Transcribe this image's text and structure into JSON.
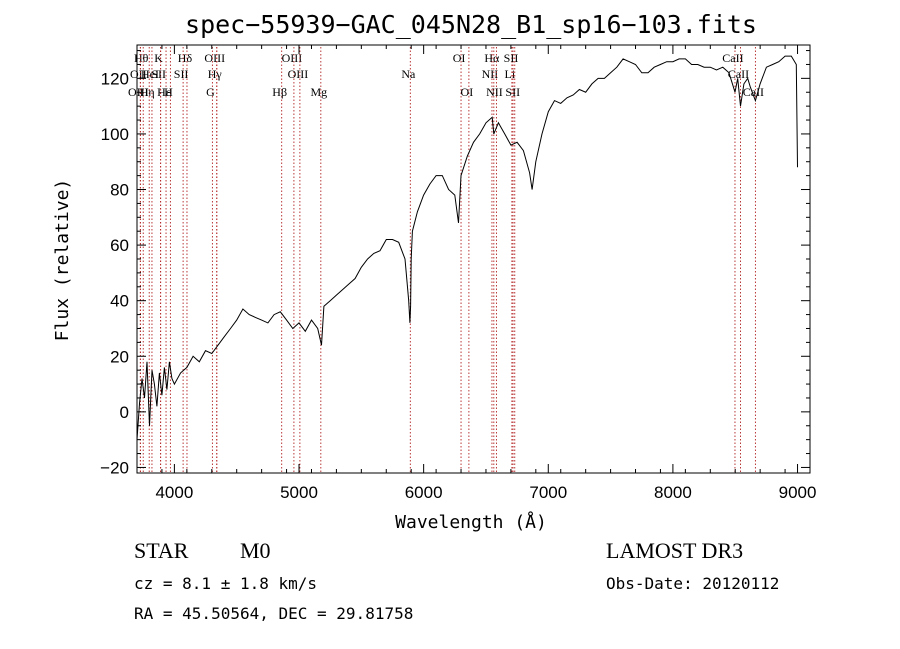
{
  "chart_data": {
    "type": "line",
    "title": "spec−55939−GAC_045N28_B1_sp16−103.fits",
    "xlabel": "Wavelength (Å)",
    "ylabel": "Flux (relative)",
    "xlim": [
      3700,
      9100
    ],
    "ylim": [
      -22,
      132
    ],
    "x_ticks": [
      4000,
      5000,
      6000,
      7000,
      8000,
      9000
    ],
    "x_tick_labels": [
      "4000",
      "5000",
      "6000",
      "7000",
      "8000",
      "9000"
    ],
    "y_ticks": [
      -20,
      0,
      20,
      40,
      60,
      80,
      100,
      120
    ],
    "y_tick_labels": [
      "−20",
      "0",
      "20",
      "40",
      "60",
      "80",
      "100",
      "120"
    ],
    "line_color": "#000000",
    "marker_color": "#b22222",
    "series": [
      {
        "x": [
          3700,
          3720,
          3740,
          3760,
          3780,
          3800,
          3820,
          3840,
          3860,
          3880,
          3900,
          3920,
          3940,
          3960,
          3980,
          4000,
          4050,
          4100,
          4150,
          4200,
          4250,
          4300,
          4350,
          4400,
          4450,
          4500,
          4550,
          4600,
          4650,
          4700,
          4750,
          4800,
          4850,
          4900,
          4950,
          5000,
          5050,
          5100,
          5150,
          5180,
          5200,
          5250,
          5300,
          5350,
          5400,
          5450,
          5500,
          5550,
          5600,
          5650,
          5700,
          5750,
          5800,
          5850,
          5880,
          5890,
          5895,
          5900,
          5910,
          5950,
          6000,
          6050,
          6100,
          6150,
          6200,
          6250,
          6280,
          6300,
          6350,
          6400,
          6450,
          6500,
          6550,
          6563,
          6600,
          6650,
          6700,
          6750,
          6800,
          6850,
          6870,
          6900,
          6950,
          7000,
          7050,
          7100,
          7150,
          7200,
          7250,
          7300,
          7350,
          7400,
          7450,
          7500,
          7550,
          7600,
          7650,
          7700,
          7750,
          7800,
          7850,
          7900,
          7950,
          8000,
          8050,
          8100,
          8150,
          8200,
          8250,
          8300,
          8350,
          8400,
          8450,
          8498,
          8520,
          8542,
          8570,
          8600,
          8620,
          8662,
          8700,
          8750,
          8800,
          8850,
          8900,
          8950,
          8990,
          9000
        ],
        "y": [
          -10,
          3,
          12,
          5,
          18,
          -5,
          15,
          10,
          2,
          14,
          6,
          16,
          8,
          18,
          12,
          10,
          14,
          16,
          20,
          18,
          22,
          21,
          24,
          27,
          30,
          33,
          37,
          35,
          34,
          33,
          32,
          35,
          36,
          33,
          30,
          32,
          29,
          33,
          30,
          24,
          38,
          40,
          42,
          44,
          46,
          48,
          52,
          55,
          57,
          58,
          62,
          62,
          61,
          55,
          40,
          32,
          38,
          55,
          65,
          72,
          78,
          82,
          85,
          85,
          80,
          78,
          68,
          85,
          92,
          97,
          100,
          104,
          106,
          100,
          104,
          100,
          96,
          97,
          94,
          86,
          80,
          90,
          100,
          108,
          112,
          111,
          113,
          114,
          116,
          115,
          118,
          120,
          120,
          122,
          124,
          127,
          126,
          125,
          122,
          122,
          124,
          125,
          126,
          126,
          127,
          127,
          125,
          125,
          124,
          124,
          123,
          124,
          122,
          115,
          120,
          110,
          118,
          120,
          117,
          112,
          118,
          124,
          125,
          126,
          128,
          128,
          125,
          88
        ]
      }
    ],
    "line_markers": [
      {
        "wave": 3750,
        "label": "Hθ",
        "row": 1,
        "name": "marker-h-theta"
      },
      {
        "wave": 3727,
        "label": "OII",
        "row": 2,
        "name": "marker-oii"
      },
      {
        "wave": 3727,
        "label": "OIII",
        "row": 3,
        "name": "marker-oiii-3727"
      },
      {
        "wave": 3798,
        "label": "Hη",
        "row": 3,
        "name": "marker-h-eta"
      },
      {
        "wave": 3820,
        "label": "HeI",
        "row": 2,
        "name": "marker-hei"
      },
      {
        "wave": 3889,
        "label": "K",
        "row": 1,
        "name": "marker-k"
      },
      {
        "wave": 3933,
        "label": "Hε",
        "row": 3,
        "name": "marker-h-epsilon"
      },
      {
        "wave": 3890,
        "label": "SII",
        "row": 2,
        "name": "marker-sii-blue"
      },
      {
        "wave": 3968,
        "label": "H",
        "row": 3,
        "name": "marker-h"
      },
      {
        "wave": 4101,
        "label": "Hδ",
        "row": 1,
        "name": "marker-h-delta"
      },
      {
        "wave": 4070,
        "label": "SII",
        "row": 2,
        "name": "marker-sii-4070"
      },
      {
        "wave": 4340,
        "label": "OIII",
        "row": 1,
        "name": "marker-oiii-4363"
      },
      {
        "wave": 4340,
        "label": "Hγ",
        "row": 2,
        "name": "marker-h-gamma"
      },
      {
        "wave": 4305,
        "label": "G",
        "row": 3,
        "name": "marker-g"
      },
      {
        "wave": 4861,
        "label": "Hβ",
        "row": 3,
        "name": "marker-h-beta"
      },
      {
        "wave": 4959,
        "label": "OIII",
        "row": 1,
        "name": "marker-oiii-4959"
      },
      {
        "wave": 5007,
        "label": "OIII",
        "row": 2,
        "name": "marker-oiii-5007"
      },
      {
        "wave": 5175,
        "label": "Mg",
        "row": 3,
        "name": "marker-mg"
      },
      {
        "wave": 5893,
        "label": "Na",
        "row": 2,
        "name": "marker-na"
      },
      {
        "wave": 6300,
        "label": "OI",
        "row": 1,
        "name": "marker-oi-6300"
      },
      {
        "wave": 6363,
        "label": "OI",
        "row": 3,
        "name": "marker-oi-6363"
      },
      {
        "wave": 6563,
        "label": "Hα",
        "row": 1,
        "name": "marker-h-alpha"
      },
      {
        "wave": 6548,
        "label": "NII",
        "row": 2,
        "name": "marker-nii-6548"
      },
      {
        "wave": 6584,
        "label": "NII",
        "row": 3,
        "name": "marker-nii-6584"
      },
      {
        "wave": 6708,
        "label": "Li",
        "row": 2,
        "name": "marker-li"
      },
      {
        "wave": 6717,
        "label": "SII",
        "row": 1,
        "name": "marker-sii-6717"
      },
      {
        "wave": 6731,
        "label": "SII",
        "row": 3,
        "name": "marker-sii-6731"
      },
      {
        "wave": 8498,
        "label": "CaII",
        "row": 1,
        "name": "marker-caii-8498"
      },
      {
        "wave": 8542,
        "label": "CaII",
        "row": 2,
        "name": "marker-caii-8542"
      },
      {
        "wave": 8662,
        "label": "CaII",
        "row": 3,
        "name": "marker-caii-8662"
      }
    ]
  },
  "info": {
    "object_class": "STAR",
    "subclass": "M0",
    "survey": "LAMOST DR3",
    "cz": "cz = 8.1 ± 1.8 km/s",
    "obs_date": "Obs-Date: 20120112",
    "coords": "RA =  45.50564, DEC =  29.81758"
  }
}
